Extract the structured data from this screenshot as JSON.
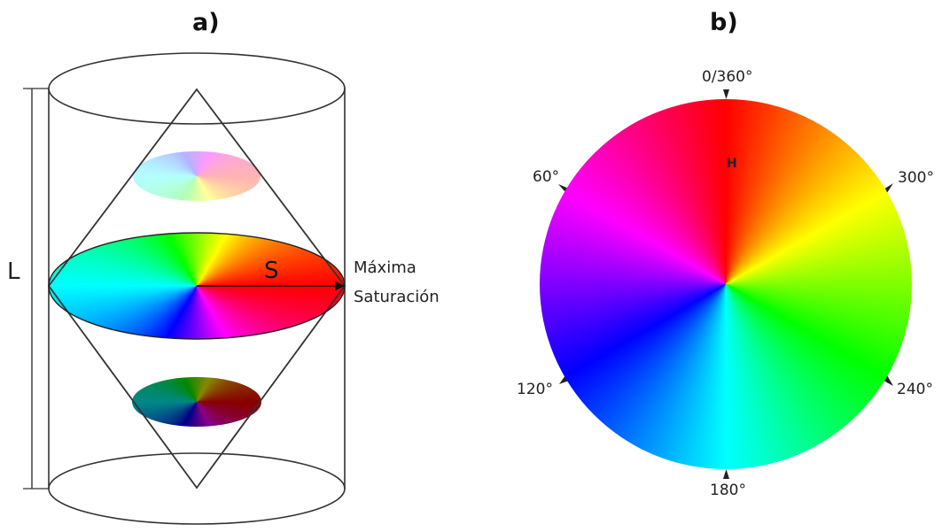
{
  "panels": {
    "a": {
      "label": "a)",
      "axis_label": "L",
      "vector_label": "S",
      "max_saturation_line1": "Máxima",
      "max_saturation_line2": "Saturación"
    },
    "b": {
      "label": "b)",
      "hue_label": "H",
      "angles": {
        "top": "0/360°",
        "upper_right": "300°",
        "upper_left": "60°",
        "lower_left": "120°",
        "lower_right": "240°",
        "bottom": "180°"
      }
    }
  },
  "colors": {
    "red": "#ff0000",
    "yellow": "#ffff00",
    "green": "#00ff00",
    "cyan": "#00ffff",
    "blue": "#0000ff",
    "magenta": "#ff00ff",
    "outline": "#333333"
  }
}
